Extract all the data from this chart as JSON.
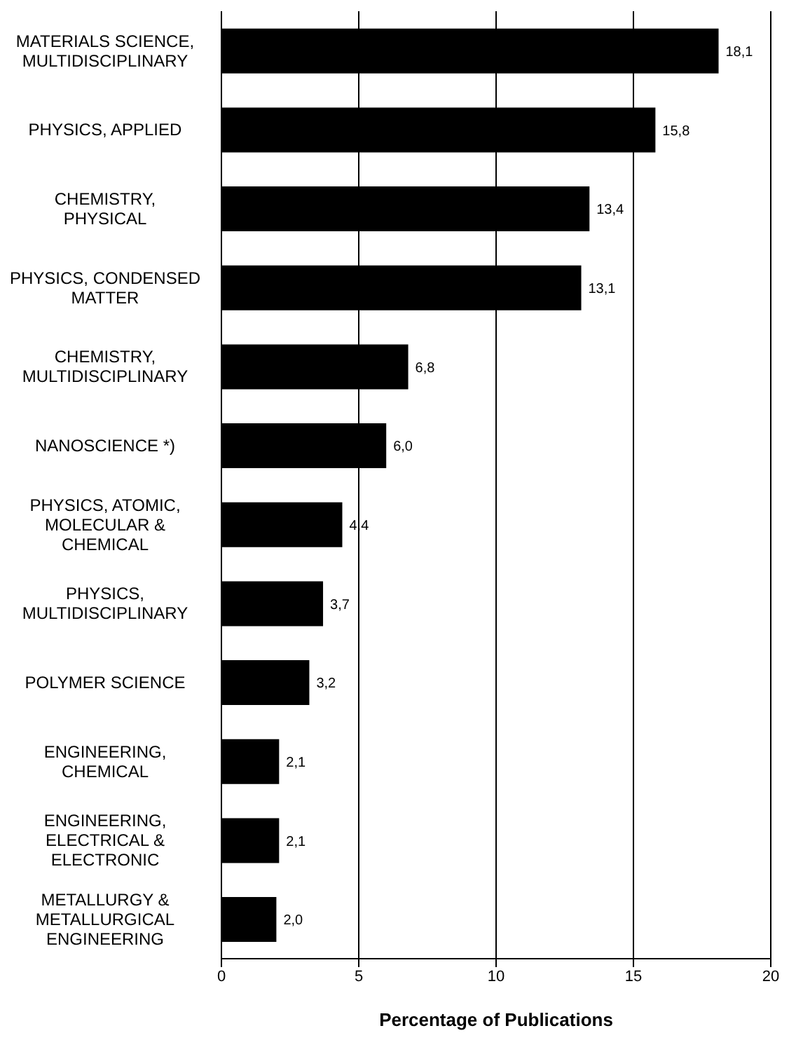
{
  "chart_data": {
    "type": "bar",
    "orientation": "horizontal",
    "xlabel": "Percentage of Publications",
    "categories": [
      "MATERIALS SCIENCE, MULTIDISCIPLINARY",
      "PHYSICS, APPLIED",
      "CHEMISTRY, PHYSICAL",
      "PHYSICS, CONDENSED MATTER",
      "CHEMISTRY, MULTIDISCIPLINARY",
      "NANOSCIENCE *)",
      "PHYSICS, ATOMIC, MOLECULAR & CHEMICAL",
      "PHYSICS, MULTIDISCIPLINARY",
      "POLYMER SCIENCE",
      "ENGINEERING, CHEMICAL",
      "ENGINEERING, ELECTRICAL & ELECTRONIC",
      "METALLURGY & METALLURGICAL ENGINEERING"
    ],
    "values": [
      18.1,
      15.8,
      13.4,
      13.1,
      6.8,
      6.0,
      4.4,
      3.7,
      3.2,
      2.1,
      2.1,
      2.0
    ],
    "value_labels": [
      "18,1",
      "15,8",
      "13,4",
      "13,1",
      "6,8",
      "6,0",
      "4,4",
      "3,7",
      "3,2",
      "2,1",
      "2,1",
      "2,0"
    ],
    "color": "#000000",
    "xlim": [
      0,
      20
    ],
    "xticks": [
      0,
      5,
      10,
      15,
      20
    ],
    "grid": "x",
    "legend": false
  }
}
